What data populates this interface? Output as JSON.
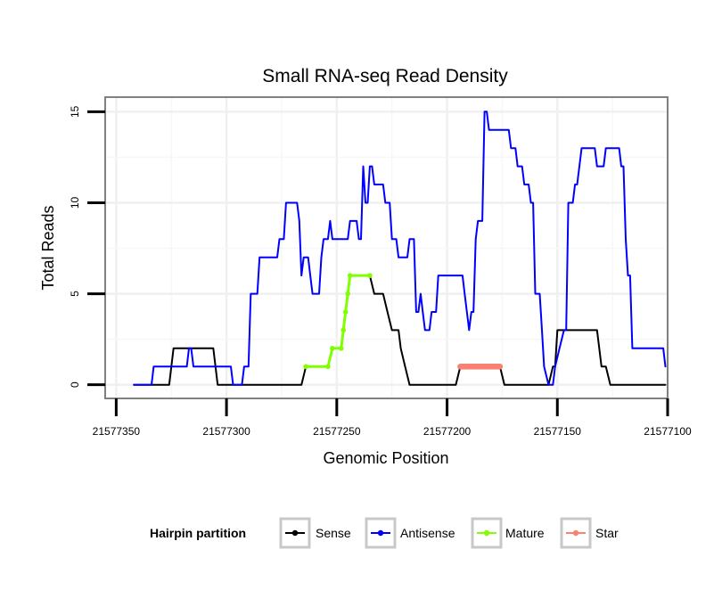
{
  "chart_data": {
    "type": "line",
    "title": "Small RNA-seq Read Density",
    "xlabel": "Genomic Position",
    "ylabel": "Total Reads",
    "x_reversed": true,
    "xlim": [
      21577355,
      21577100
    ],
    "ylim": [
      -0.75,
      15.8
    ],
    "x_ticks": [
      21577350,
      21577300,
      21577250,
      21577200,
      21577150,
      21577100
    ],
    "y_ticks": [
      0,
      5,
      10,
      15
    ],
    "grid": true,
    "legend": {
      "title": "Hairpin partition",
      "position": "bottom",
      "entries": [
        "Sense",
        "Antisense",
        "Mature",
        "Star"
      ]
    },
    "series": [
      {
        "name": "Sense",
        "color": "#000000",
        "points": [
          [
            21577342,
            0
          ],
          [
            21577326,
            0
          ],
          [
            21577324,
            2
          ],
          [
            21577306,
            2
          ],
          [
            21577304,
            0
          ],
          [
            21577266,
            0
          ],
          [
            21577264,
            1
          ],
          [
            21577254,
            1
          ],
          [
            21577252,
            2
          ],
          [
            21577248,
            2
          ],
          [
            21577247,
            3
          ],
          [
            21577246,
            4
          ],
          [
            21577245,
            5
          ],
          [
            21577244,
            6
          ],
          [
            21577235,
            6
          ],
          [
            21577233,
            5
          ],
          [
            21577229,
            5
          ],
          [
            21577227,
            4
          ],
          [
            21577225,
            3
          ],
          [
            21577222,
            3
          ],
          [
            21577221,
            2
          ],
          [
            21577219,
            1
          ],
          [
            21577217,
            0
          ],
          [
            21577196,
            0
          ],
          [
            21577194,
            1
          ],
          [
            21577176,
            1
          ],
          [
            21577174,
            0
          ],
          [
            21577154,
            0
          ],
          [
            21577152,
            1
          ],
          [
            21577151,
            1
          ],
          [
            21577150,
            3
          ],
          [
            21577132,
            3
          ],
          [
            21577130,
            1
          ],
          [
            21577128,
            1
          ],
          [
            21577126,
            0
          ],
          [
            21577101,
            0
          ]
        ]
      },
      {
        "name": "Antisense",
        "color": "#0000ff",
        "points": [
          [
            21577342,
            0
          ],
          [
            21577334,
            0
          ],
          [
            21577333,
            1
          ],
          [
            21577318,
            1
          ],
          [
            21577317,
            2
          ],
          [
            21577316,
            2
          ],
          [
            21577315,
            1
          ],
          [
            21577298,
            1
          ],
          [
            21577297,
            0
          ],
          [
            21577293,
            0
          ],
          [
            21577292,
            1
          ],
          [
            21577290,
            1
          ],
          [
            21577289,
            5
          ],
          [
            21577286,
            5
          ],
          [
            21577285,
            7
          ],
          [
            21577277,
            7
          ],
          [
            21577276,
            8
          ],
          [
            21577274,
            8
          ],
          [
            21577273,
            10
          ],
          [
            21577268,
            10
          ],
          [
            21577267,
            9
          ],
          [
            21577266,
            6
          ],
          [
            21577265,
            7
          ],
          [
            21577263,
            7
          ],
          [
            21577262,
            6
          ],
          [
            21577261,
            5
          ],
          [
            21577258,
            5
          ],
          [
            21577257,
            7
          ],
          [
            21577256,
            8
          ],
          [
            21577254,
            8
          ],
          [
            21577253,
            9
          ],
          [
            21577252,
            8
          ],
          [
            21577245,
            8
          ],
          [
            21577244,
            9
          ],
          [
            21577241,
            9
          ],
          [
            21577240,
            8
          ],
          [
            21577239,
            8
          ],
          [
            21577238,
            12
          ],
          [
            21577237,
            10
          ],
          [
            21577236,
            10
          ],
          [
            21577235,
            12
          ],
          [
            21577234,
            12
          ],
          [
            21577233,
            11
          ],
          [
            21577229,
            11
          ],
          [
            21577228,
            10
          ],
          [
            21577226,
            10
          ],
          [
            21577225,
            8
          ],
          [
            21577223,
            8
          ],
          [
            21577222,
            7
          ],
          [
            21577218,
            7
          ],
          [
            21577217,
            8
          ],
          [
            21577215,
            8
          ],
          [
            21577214,
            4
          ],
          [
            21577213,
            4
          ],
          [
            21577212,
            5
          ],
          [
            21577211,
            4
          ],
          [
            21577210,
            3
          ],
          [
            21577208,
            3
          ],
          [
            21577207,
            4
          ],
          [
            21577205,
            4
          ],
          [
            21577204,
            6
          ],
          [
            21577193,
            6
          ],
          [
            21577192,
            5
          ],
          [
            21577191,
            4
          ],
          [
            21577190,
            3
          ],
          [
            21577189,
            4
          ],
          [
            21577188,
            4
          ],
          [
            21577187,
            8
          ],
          [
            21577186,
            9
          ],
          [
            21577184,
            9
          ],
          [
            21577183,
            15
          ],
          [
            21577182,
            15
          ],
          [
            21577181,
            14
          ],
          [
            21577172,
            14
          ],
          [
            21577171,
            13
          ],
          [
            21577169,
            13
          ],
          [
            21577168,
            12
          ],
          [
            21577166,
            12
          ],
          [
            21577165,
            11
          ],
          [
            21577163,
            11
          ],
          [
            21577162,
            10
          ],
          [
            21577161,
            10
          ],
          [
            21577160,
            5
          ],
          [
            21577158,
            5
          ],
          [
            21577157,
            3
          ],
          [
            21577156,
            1
          ],
          [
            21577154,
            0
          ],
          [
            21577152,
            0
          ],
          [
            21577151,
            1
          ],
          [
            21577149,
            2
          ],
          [
            21577147,
            3
          ],
          [
            21577146,
            3
          ],
          [
            21577145,
            10
          ],
          [
            21577143,
            10
          ],
          [
            21577142,
            11
          ],
          [
            21577141,
            11
          ],
          [
            21577140,
            12
          ],
          [
            21577139,
            13
          ],
          [
            21577133,
            13
          ],
          [
            21577132,
            12
          ],
          [
            21577129,
            12
          ],
          [
            21577128,
            13
          ],
          [
            21577122,
            13
          ],
          [
            21577121,
            12
          ],
          [
            21577120,
            12
          ],
          [
            21577119,
            8
          ],
          [
            21577118,
            6
          ],
          [
            21577117,
            6
          ],
          [
            21577116,
            2
          ],
          [
            21577102,
            2
          ],
          [
            21577101,
            1
          ]
        ]
      },
      {
        "name": "Mature",
        "color": "#7fff00",
        "points": [
          [
            21577264,
            1
          ],
          [
            21577254,
            1
          ],
          [
            21577252,
            2
          ],
          [
            21577248,
            2
          ],
          [
            21577247,
            3
          ],
          [
            21577246,
            4
          ],
          [
            21577245,
            5
          ],
          [
            21577244,
            6
          ],
          [
            21577235,
            6
          ]
        ]
      },
      {
        "name": "Star",
        "color": "#fa8072",
        "points": [
          [
            21577194,
            1
          ],
          [
            21577176,
            1
          ]
        ]
      }
    ]
  }
}
